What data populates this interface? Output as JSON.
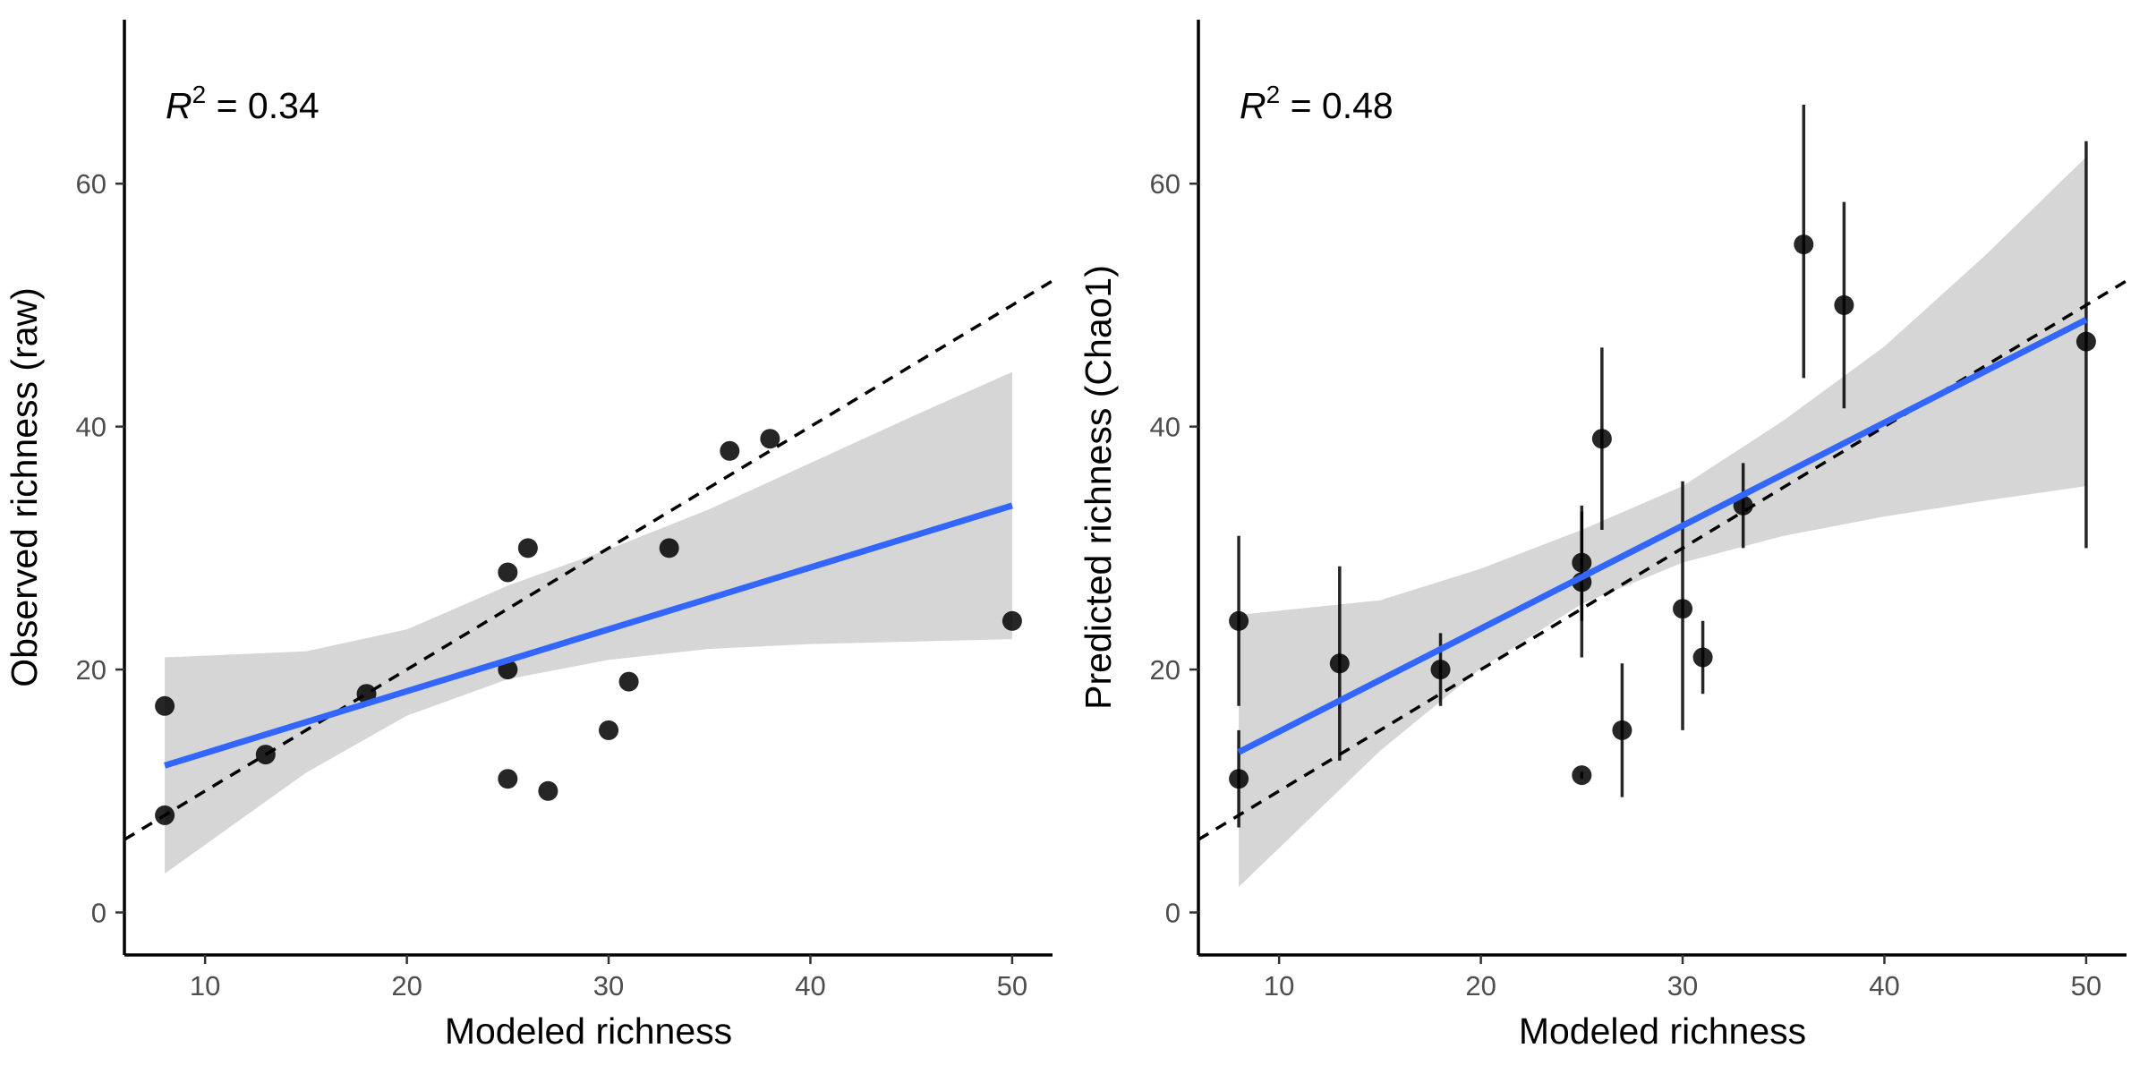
{
  "chart_data": [
    {
      "type": "scatter",
      "title": "",
      "xlabel": "Modeled richness",
      "ylabel": "Observed richness (raw)",
      "xlim": [
        6,
        52
      ],
      "ylim": [
        -3.5,
        73.5
      ],
      "x_ticks": [
        10,
        20,
        30,
        40,
        50
      ],
      "y_ticks": [
        0,
        20,
        40,
        60
      ],
      "grid": false,
      "annotation": {
        "prefix": "R",
        "superscript": "2",
        "value": " = 0.34"
      },
      "points": [
        {
          "x": 8,
          "y": 17
        },
        {
          "x": 8,
          "y": 8
        },
        {
          "x": 13,
          "y": 13
        },
        {
          "x": 18,
          "y": 18
        },
        {
          "x": 25,
          "y": 28
        },
        {
          "x": 25,
          "y": 20
        },
        {
          "x": 25,
          "y": 11
        },
        {
          "x": 26,
          "y": 30
        },
        {
          "x": 27,
          "y": 10
        },
        {
          "x": 30,
          "y": 15
        },
        {
          "x": 31,
          "y": 19
        },
        {
          "x": 33,
          "y": 30
        },
        {
          "x": 36,
          "y": 38
        },
        {
          "x": 38,
          "y": 39
        },
        {
          "x": 50,
          "y": 24
        }
      ],
      "identity_line": {
        "slope": 1,
        "intercept": 0,
        "style": "dashed"
      },
      "fit_line": {
        "x": [
          8,
          50
        ],
        "y": [
          12.1,
          33.5
        ],
        "color": "#3366ff"
      },
      "confidence_band": {
        "x": [
          8,
          15,
          20,
          25,
          30,
          35,
          40,
          45,
          50
        ],
        "lower": [
          3.2,
          11.5,
          16.2,
          19.2,
          20.8,
          21.7,
          22.1,
          22.3,
          22.5
        ],
        "upper": [
          21.0,
          21.5,
          23.3,
          26.9,
          29.9,
          33.2,
          37.0,
          40.8,
          44.5
        ]
      }
    },
    {
      "type": "scatter",
      "title": "",
      "xlabel": "Modeled richness",
      "ylabel": "Predicted richness (Chao1)",
      "xlim": [
        6,
        52
      ],
      "ylim": [
        -3.5,
        73.5
      ],
      "x_ticks": [
        10,
        20,
        30,
        40,
        50
      ],
      "y_ticks": [
        0,
        20,
        40,
        60
      ],
      "grid": false,
      "annotation": {
        "prefix": "R",
        "superscript": "2",
        "value": " = 0.48"
      },
      "points": [
        {
          "x": 8,
          "y": 24,
          "low": 17,
          "high": 31
        },
        {
          "x": 8,
          "y": 11,
          "low": 7,
          "high": 15
        },
        {
          "x": 13,
          "y": 20.5,
          "low": 12.5,
          "high": 28.5
        },
        {
          "x": 18,
          "y": 20,
          "low": 17,
          "high": 23
        },
        {
          "x": 25,
          "y": 28.8,
          "low": 24,
          "high": 33.5
        },
        {
          "x": 25,
          "y": 27.2,
          "low": 21,
          "high": 33
        },
        {
          "x": 25,
          "y": 11.3,
          "low": 11,
          "high": 11.6
        },
        {
          "x": 26,
          "y": 39,
          "low": 31.5,
          "high": 46.5
        },
        {
          "x": 27,
          "y": 15,
          "low": 9.5,
          "high": 20.5
        },
        {
          "x": 30,
          "y": 25,
          "low": 15,
          "high": 35.5
        },
        {
          "x": 31,
          "y": 21,
          "low": 18,
          "high": 24
        },
        {
          "x": 33,
          "y": 33.5,
          "low": 30,
          "high": 37
        },
        {
          "x": 36,
          "y": 55,
          "low": 44,
          "high": 66.5
        },
        {
          "x": 38,
          "y": 50,
          "low": 41.5,
          "high": 58.5
        },
        {
          "x": 50,
          "y": 47,
          "low": 30,
          "high": 63.5
        }
      ],
      "identity_line": {
        "slope": 1,
        "intercept": 0,
        "style": "dashed"
      },
      "fit_line": {
        "x": [
          8,
          50
        ],
        "y": [
          13.2,
          48.8
        ],
        "color": "#3366ff"
      },
      "confidence_band": {
        "x": [
          8,
          15,
          20,
          25,
          30,
          35,
          40,
          45,
          50
        ],
        "lower": [
          2.1,
          13.3,
          20.1,
          25.4,
          28.8,
          31.0,
          32.6,
          33.9,
          35.1
        ],
        "upper": [
          24.5,
          25.7,
          28.3,
          31.5,
          35.1,
          40.5,
          46.6,
          54.1,
          62.2
        ]
      }
    }
  ]
}
